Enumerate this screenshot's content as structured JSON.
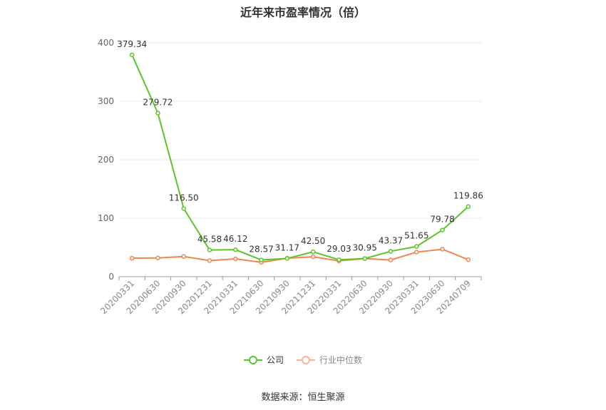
{
  "title": "近年来市盈率情况（倍）",
  "source_text": "数据来源：恒生聚源",
  "colors": {
    "company": "#5cc52b",
    "industry": "#f0864c",
    "grid": "#e6e8f0",
    "axis": "#999999"
  },
  "chart_data": {
    "type": "line",
    "title": "近年来市盈率情况（倍）",
    "xlabel": "",
    "ylabel": "",
    "ylim": [
      0,
      400
    ],
    "yticks": [
      0,
      100,
      200,
      300,
      400
    ],
    "grid": true,
    "legend": "bottom-center",
    "categories": [
      "20200331",
      "20200630",
      "20200930",
      "20201231",
      "20210331",
      "20210630",
      "20210930",
      "20211231",
      "20220331",
      "20220630",
      "20220930",
      "20230331",
      "20230630",
      "20240709"
    ],
    "series": [
      {
        "name": "公司",
        "values": [
          379.34,
          279.72,
          116.5,
          45.58,
          46.12,
          28.57,
          31.17,
          42.5,
          29.03,
          30.95,
          43.37,
          51.65,
          79.78,
          119.86
        ],
        "labels": [
          "379.34",
          "279.72",
          "116.50",
          "45.58",
          "46.12",
          "28.57",
          "31.17",
          "42.50",
          "29.03",
          "30.95",
          "43.37",
          "51.65",
          "79.78",
          "119.86"
        ]
      },
      {
        "name": "行业中位数",
        "values": [
          31.5,
          32.0,
          34.5,
          27.5,
          30.5,
          24.5,
          31.5,
          34.0,
          27.0,
          31.0,
          28.5,
          42.0,
          47.0,
          29.0
        ]
      }
    ]
  }
}
